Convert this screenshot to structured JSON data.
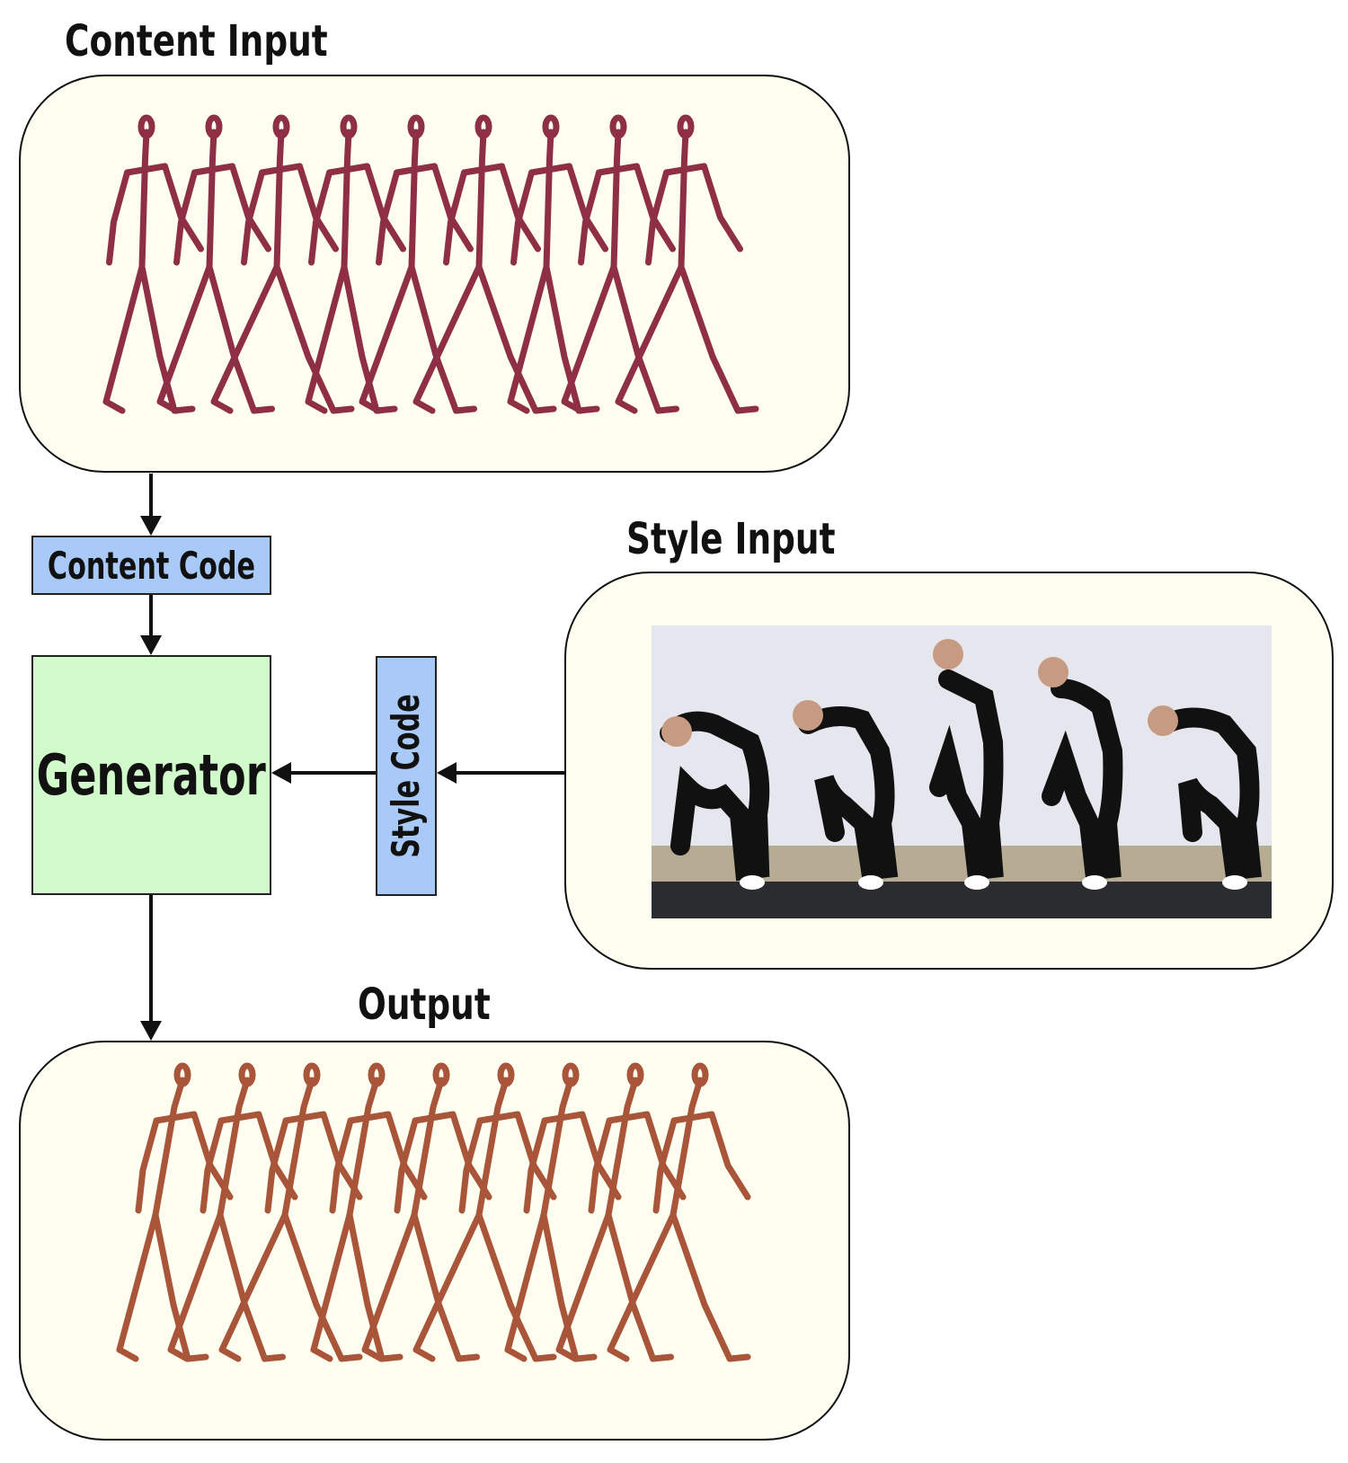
{
  "labels": {
    "content_input": "Content Input",
    "style_input": "Style Input",
    "output": "Output"
  },
  "blocks": {
    "content_code": "Content Code",
    "generator": "Generator",
    "style_code": "Style Code"
  },
  "colors": {
    "panel_fill": "#fdfdf0",
    "code_fill": "#a9c9f7",
    "generator_fill": "#d2fbcb",
    "content_skeleton": "#8e2f46",
    "output_skeleton": "#a8553a"
  }
}
